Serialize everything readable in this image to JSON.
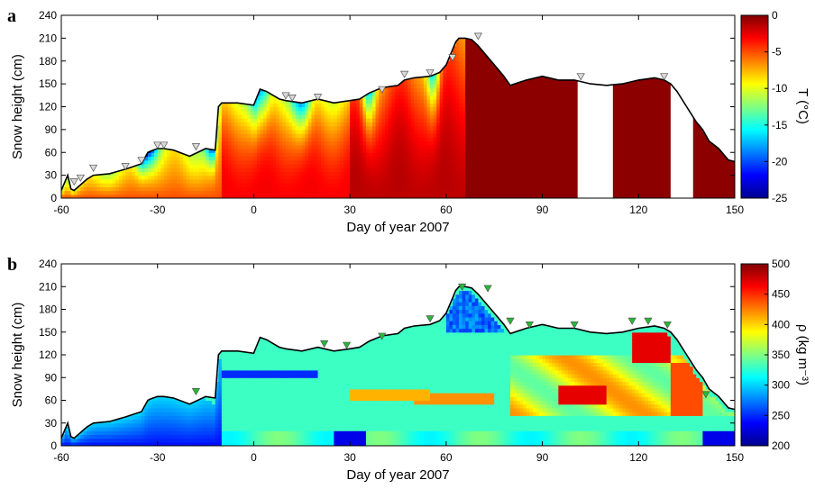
{
  "chart_data": [
    {
      "panel_label": "a",
      "type": "heatmap",
      "xlabel": "Day of year 2007",
      "ylabel": "Snow height (cm)",
      "xlim": [
        -60,
        150
      ],
      "ylim": [
        0,
        240
      ],
      "xticks": [
        -60,
        -30,
        0,
        30,
        60,
        90,
        120,
        150
      ],
      "yticks": [
        0,
        30,
        60,
        90,
        120,
        150,
        180,
        210,
        240
      ],
      "colorbar": {
        "label": "T (°C)",
        "range": [
          -25,
          0
        ],
        "ticks": [
          0,
          -5,
          -10,
          -15,
          -20,
          -25
        ],
        "colormap": "jet"
      },
      "snow_height_line": {
        "x": [
          -60,
          -58,
          -57,
          -56,
          -52,
          -50,
          -45,
          -40,
          -35,
          -33,
          -32,
          -30,
          -28,
          -25,
          -20,
          -15,
          -12,
          -11,
          -10,
          -5,
          0,
          2,
          4,
          6,
          8,
          10,
          15,
          20,
          25,
          30,
          33,
          36,
          40,
          45,
          47,
          50,
          55,
          58,
          60,
          62,
          63,
          64,
          66,
          68,
          70,
          72,
          74,
          76,
          78,
          80,
          85,
          90,
          95,
          100,
          105,
          110,
          115,
          120,
          125,
          128,
          130,
          132,
          135,
          138,
          140,
          142,
          145,
          148,
          150
        ],
        "y": [
          10,
          30,
          12,
          10,
          25,
          30,
          32,
          38,
          45,
          60,
          62,
          65,
          65,
          63,
          55,
          65,
          63,
          120,
          125,
          125,
          122,
          143,
          140,
          135,
          130,
          128,
          125,
          130,
          125,
          128,
          130,
          138,
          145,
          148,
          155,
          158,
          160,
          165,
          175,
          195,
          205,
          210,
          210,
          208,
          200,
          190,
          180,
          170,
          160,
          148,
          155,
          160,
          155,
          155,
          150,
          148,
          150,
          155,
          158,
          155,
          150,
          140,
          120,
          100,
          90,
          75,
          65,
          50,
          48
        ]
      },
      "gap_bands_days": [
        [
          101,
          112
        ],
        [
          130,
          137
        ]
      ],
      "markers": {
        "symbol": "triangle-down",
        "color": "#d9d9d9",
        "x": [
          -56,
          -54,
          -50,
          -40,
          -35,
          -30,
          -28,
          -18,
          10,
          12,
          20,
          40,
          47,
          55,
          62,
          70,
          102,
          128
        ],
        "y": [
          22,
          27,
          40,
          42,
          50,
          70,
          70,
          68,
          135,
          132,
          133,
          143,
          163,
          165,
          185,
          213,
          160,
          160
        ]
      }
    },
    {
      "panel_label": "b",
      "type": "heatmap",
      "xlabel": "Day of year 2007",
      "ylabel": "Snow height (cm)",
      "xlim": [
        -60,
        150
      ],
      "ylim": [
        0,
        240
      ],
      "xticks": [
        -60,
        -30,
        0,
        30,
        60,
        90,
        120,
        150
      ],
      "yticks": [
        0,
        30,
        60,
        90,
        120,
        150,
        180,
        210,
        240
      ],
      "colorbar": {
        "label": "ρ (kg m⁻³)",
        "range": [
          200,
          500
        ],
        "ticks": [
          500,
          450,
          400,
          350,
          300,
          250,
          200
        ],
        "colormap": "jet"
      },
      "snow_height_line": {
        "x": [
          -60,
          -58,
          -57,
          -56,
          -52,
          -50,
          -45,
          -40,
          -35,
          -33,
          -32,
          -30,
          -28,
          -25,
          -20,
          -15,
          -12,
          -11,
          -10,
          -5,
          0,
          2,
          4,
          6,
          8,
          10,
          15,
          20,
          25,
          30,
          33,
          36,
          40,
          45,
          47,
          50,
          55,
          58,
          60,
          62,
          63,
          64,
          66,
          68,
          70,
          72,
          74,
          76,
          78,
          80,
          85,
          90,
          95,
          100,
          105,
          110,
          115,
          120,
          125,
          128,
          130,
          132,
          135,
          138,
          140,
          142,
          145,
          148,
          150
        ],
        "y": [
          10,
          30,
          12,
          10,
          25,
          30,
          32,
          38,
          45,
          60,
          62,
          65,
          65,
          63,
          55,
          65,
          63,
          120,
          125,
          125,
          122,
          143,
          140,
          135,
          130,
          128,
          125,
          130,
          125,
          128,
          130,
          138,
          145,
          148,
          155,
          158,
          160,
          165,
          175,
          195,
          205,
          210,
          210,
          208,
          200,
          190,
          180,
          170,
          160,
          148,
          155,
          160,
          155,
          155,
          150,
          148,
          150,
          155,
          158,
          155,
          150,
          140,
          120,
          100,
          90,
          75,
          65,
          50,
          48
        ]
      },
      "markers": {
        "symbol": "triangle-down",
        "color": "#22bb33",
        "x": [
          -18,
          22,
          29,
          40,
          55,
          65,
          73,
          80,
          86,
          100,
          118,
          123,
          129,
          141
        ],
        "y": [
          72,
          135,
          133,
          145,
          168,
          210,
          208,
          165,
          160,
          160,
          165,
          165,
          160,
          68
        ]
      }
    }
  ]
}
